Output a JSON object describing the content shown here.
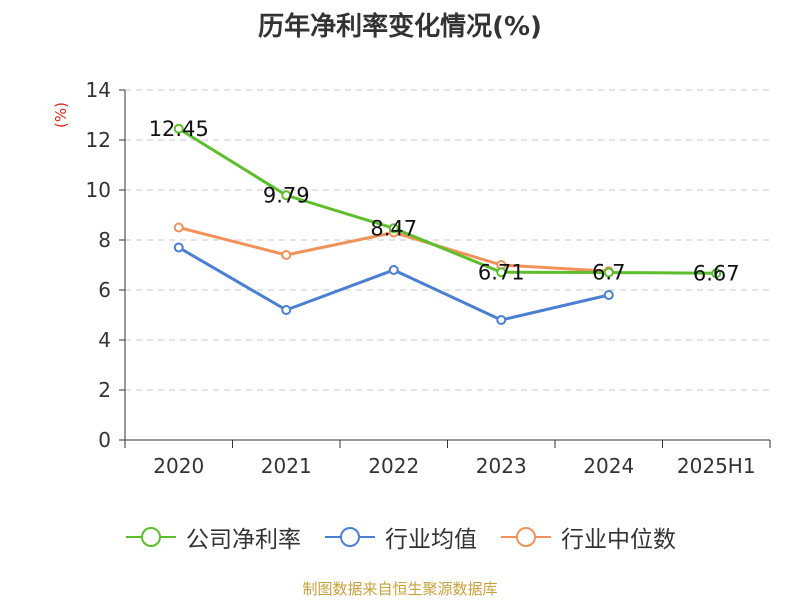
{
  "chart_data": {
    "type": "line",
    "title": "历年净利率变化情况(%)",
    "ylabel": "(%)",
    "xlabel": "",
    "categories": [
      "2020",
      "2021",
      "2022",
      "2023",
      "2024",
      "2025H1"
    ],
    "ylim": [
      0,
      14
    ],
    "yticks": [
      0,
      2,
      4,
      6,
      8,
      10,
      12,
      14
    ],
    "grid": true,
    "legend_position": "bottom",
    "series": [
      {
        "name": "公司净利率",
        "color": "#5dbe2b",
        "values": [
          12.45,
          9.79,
          8.47,
          6.71,
          6.7,
          6.67
        ],
        "labels": [
          "12.45",
          "9.79",
          "8.47",
          "6.71",
          "6.7",
          "6.67"
        ]
      },
      {
        "name": "行业均值",
        "color": "#4a7fd4",
        "values": [
          7.7,
          5.2,
          6.8,
          4.8,
          5.8,
          null
        ],
        "labels": []
      },
      {
        "name": "行业中位数",
        "color": "#f2925a",
        "values": [
          8.5,
          7.4,
          8.3,
          7.0,
          6.75,
          null
        ],
        "labels": []
      }
    ]
  },
  "footer": {
    "source": "制图数据来自恒生聚源数据库"
  }
}
